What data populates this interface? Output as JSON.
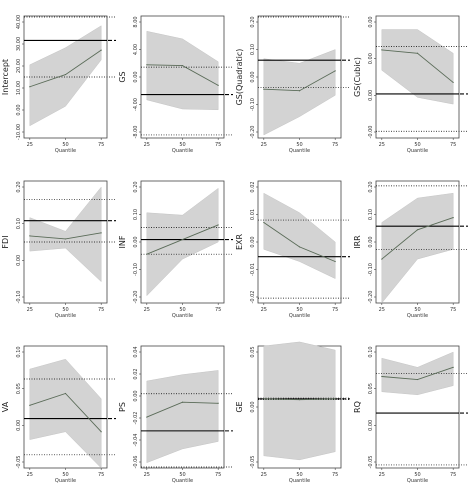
{
  "chart_data": [
    {
      "type": "line",
      "ylabel": "Intercept",
      "xlabel": "Quantile",
      "x": [
        25,
        50,
        75
      ],
      "x_ticks": [
        "25",
        "50",
        "75"
      ],
      "yticks": [
        "-10.00",
        "0.00",
        "10.00",
        "20.00",
        "30.00",
        "40.00"
      ],
      "ylim": [
        -10,
        40
      ],
      "estimate": [
        11,
        16,
        26
      ],
      "ci_lower": [
        -5,
        3,
        22
      ],
      "ci_upper": [
        20,
        27,
        36
      ],
      "ols": 30,
      "ols_ci": [
        15,
        44
      ]
    },
    {
      "type": "line",
      "ylabel": "GS",
      "xlabel": "Quantile",
      "x": [
        25,
        50,
        75
      ],
      "x_ticks": [
        "25",
        "50",
        "75"
      ],
      "yticks": [
        "-8.00",
        "-4.00",
        "0.00",
        "4.00",
        "8.00"
      ],
      "ylim": [
        -8,
        8
      ],
      "estimate": [
        1.6,
        1.5,
        -1.1
      ],
      "ci_lower": [
        -3,
        -4.2,
        -4.3
      ],
      "ci_upper": [
        6,
        5,
        2
      ],
      "ols": -2.3,
      "ols_ci": [
        -7.6,
        1.3
      ]
    },
    {
      "type": "line",
      "ylabel": "GS(Quadratic)",
      "xlabel": "Quantile",
      "x": [
        25,
        50,
        75
      ],
      "x_ticks": [
        "25",
        "50",
        "75"
      ],
      "yticks": [
        "-0.20",
        "-0.10",
        "0.00",
        "0.10",
        "0.20"
      ],
      "ylim": [
        -0.2,
        0.2
      ],
      "estimate": [
        -0.04,
        -0.045,
        0.02
      ],
      "ci_lower": [
        -0.19,
        -0.13,
        -0.06
      ],
      "ci_upper": [
        0.06,
        0.045,
        0.09
      ],
      "ols": 0.055,
      "ols_ci": [
        -0.035,
        0.215
      ]
    },
    {
      "type": "line",
      "ylabel": "GS(Cubic)",
      "xlabel": "Quantile",
      "x": [
        25,
        50,
        75
      ],
      "x_ticks": [
        "25",
        "50",
        "75"
      ],
      "yticks": [
        "-0.00",
        "0.00",
        "0.00",
        "0.00"
      ],
      "ylim": [
        -0.0009,
        0.0009
      ],
      "estimate": [
        0.0004,
        0.00035,
        -8e-05
      ],
      "ci_lower": [
        0.0001,
        -0.0003,
        -0.0004
      ],
      "ci_upper": [
        0.0007,
        0.0007,
        0.00035
      ],
      "ols": -0.00025,
      "ols_ci": [
        -0.0008,
        0.00045
      ]
    },
    {
      "type": "line",
      "ylabel": "FDI",
      "xlabel": "Quantile",
      "x": [
        25,
        50,
        75
      ],
      "x_ticks": [
        "25",
        "50",
        "75"
      ],
      "yticks": [
        "-0.10",
        "0.00",
        "0.10",
        "0.20"
      ],
      "ylim": [
        -0.15,
        0.25
      ],
      "estimate": [
        0.07,
        0.06,
        0.08
      ],
      "ci_lower": [
        0.02,
        0.03,
        -0.08
      ],
      "ci_upper": [
        0.13,
        0.085,
        0.23
      ],
      "ols": 0.12,
      "ols_ci": [
        0.05,
        0.19
      ]
    },
    {
      "type": "line",
      "ylabel": "INF",
      "xlabel": "Quantile",
      "x": [
        25,
        50,
        75
      ],
      "x_ticks": [
        "25",
        "50",
        "75"
      ],
      "yticks": [
        "-0.20",
        "-0.10",
        "0.00",
        "0.10",
        "0.20"
      ],
      "ylim": [
        -0.25,
        0.25
      ],
      "estimate": [
        -0.05,
        0.01,
        0.07
      ],
      "ci_lower": [
        -0.22,
        -0.07,
        0.0
      ],
      "ci_upper": [
        0.12,
        0.11,
        0.22
      ],
      "ols": 0.01,
      "ols_ci": [
        -0.05,
        0.06
      ]
    },
    {
      "type": "line",
      "ylabel": "EXR",
      "xlabel": "Quantile",
      "x": [
        25,
        50,
        75
      ],
      "x_ticks": [
        "25",
        "50",
        "75"
      ],
      "yticks": [
        "-0.02",
        "-0.01",
        "0.00",
        "0.01",
        "0.02"
      ],
      "ylim": [
        -0.025,
        0.025
      ],
      "estimate": [
        0.008,
        -0.002,
        -0.008
      ],
      "ci_lower": [
        -0.003,
        -0.008,
        -0.015
      ],
      "ci_upper": [
        0.02,
        0.012,
        0.0
      ],
      "ols": -0.006,
      "ols_ci": [
        -0.023,
        0.009
      ]
    },
    {
      "type": "line",
      "ylabel": "IRR",
      "xlabel": "Quantile",
      "x": [
        25,
        50,
        75
      ],
      "x_ticks": [
        "25",
        "50",
        "75"
      ],
      "yticks": [
        "-0.20",
        "-0.10",
        "0.00",
        "0.10",
        "0.20"
      ],
      "ylim": [
        -0.25,
        0.25
      ],
      "estimate": [
        -0.07,
        0.05,
        0.1
      ],
      "ci_lower": [
        -0.25,
        -0.07,
        -0.03
      ],
      "ci_upper": [
        0.08,
        0.18,
        0.2
      ],
      "ols": 0.065,
      "ols_ci": [
        -0.03,
        0.23
      ]
    },
    {
      "type": "line",
      "ylabel": "VA",
      "xlabel": "Quantile",
      "x": [
        25,
        50,
        75
      ],
      "x_ticks": [
        "25",
        "50",
        "75"
      ],
      "yticks": [
        "-0.05",
        "0.00",
        "0.05",
        "0.10"
      ],
      "ylim": [
        -0.075,
        0.11
      ],
      "estimate": [
        0.02,
        0.038,
        -0.02
      ],
      "ci_lower": [
        -0.032,
        -0.02,
        -0.075
      ],
      "ci_upper": [
        0.075,
        0.09,
        0.03
      ],
      "ols": 0.0,
      "ols_ci": [
        -0.055,
        0.06
      ]
    },
    {
      "type": "line",
      "ylabel": "PS",
      "xlabel": "Quantile",
      "x": [
        25,
        50,
        75
      ],
      "x_ticks": [
        "25",
        "50",
        "75"
      ],
      "yticks": [
        "-0.06",
        "-0.04",
        "-0.02",
        "0.00",
        "0.02",
        "0.04"
      ],
      "ylim": [
        -0.07,
        0.045
      ],
      "estimate": [
        -0.022,
        -0.008,
        -0.009
      ],
      "ci_lower": [
        -0.065,
        -0.052,
        -0.045
      ],
      "ci_upper": [
        0.012,
        0.018,
        0.022
      ],
      "ols": -0.035,
      "ols_ci": [
        -0.07,
        0.0
      ]
    },
    {
      "type": "line",
      "ylabel": "GE",
      "xlabel": "Quantile",
      "x": [
        25,
        50,
        75
      ],
      "x_ticks": [
        "25",
        "50",
        "75"
      ],
      "yticks": [
        "-0.05",
        "0.00",
        "0.05"
      ],
      "ylim": [
        -0.085,
        0.065
      ],
      "estimate": [
        0.0,
        -0.001,
        0.0
      ],
      "ci_lower": [
        -0.07,
        -0.075,
        -0.065
      ],
      "ci_upper": [
        0.065,
        0.07,
        0.06
      ],
      "ols": 0.0,
      "ols_ci": [
        -0.001,
        0.001
      ]
    },
    {
      "type": "line",
      "ylabel": "RQ",
      "xlabel": "Quantile",
      "x": [
        25,
        50,
        75
      ],
      "x_ticks": [
        "25",
        "50",
        "75"
      ],
      "yticks": [
        "-0.05",
        "0.00",
        "0.05",
        "0.10"
      ],
      "ylim": [
        -0.09,
        0.11
      ],
      "estimate": [
        0.06,
        0.055,
        0.075
      ],
      "ci_lower": [
        0.035,
        0.03,
        0.045
      ],
      "ci_upper": [
        0.09,
        0.075,
        0.1
      ],
      "ols": 0.0,
      "ols_ci": [
        -0.085,
        0.065
      ]
    }
  ]
}
